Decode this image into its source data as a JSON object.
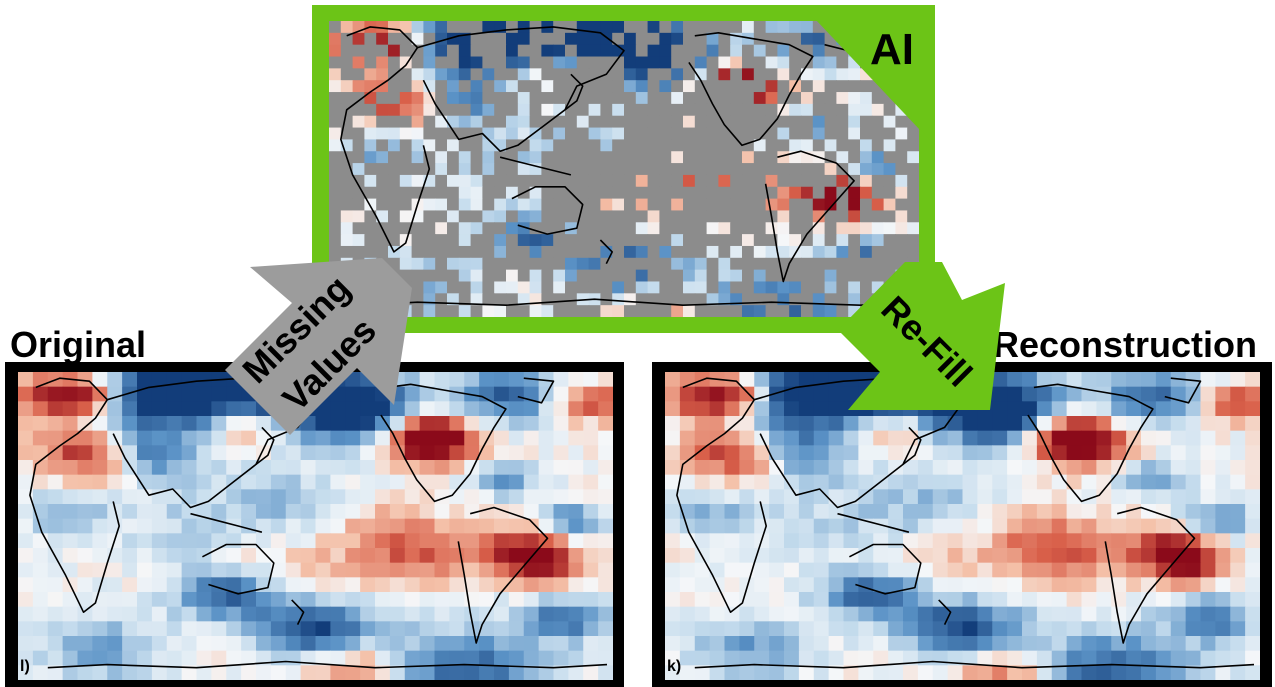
{
  "labels": {
    "original": "Original",
    "reconstruction": "Reconstruction",
    "ai": "AI",
    "missing_values_line1": "Missing",
    "missing_values_line2": "Values",
    "refill": "Re-Fill",
    "panel_letter_original": "l)",
    "panel_letter_reconstruction": "k)"
  },
  "colors": {
    "green_accent": "#6cc417",
    "gray_arrow": "#9c9c9c",
    "missing_gray": "#8c8c8c",
    "frame_black": "#000000",
    "warm_dark": "#8b0a1a",
    "warm": "#d9604a",
    "warm_light": "#f4c0a8",
    "neutral": "#f5f7f9",
    "cool_light": "#c5dced",
    "cool": "#5a92c6",
    "cool_dark": "#123d7a"
  },
  "icons": {
    "missing_values_arrow": "block-arrow-up-right",
    "refill_arrow": "block-arrow-down-right"
  }
}
